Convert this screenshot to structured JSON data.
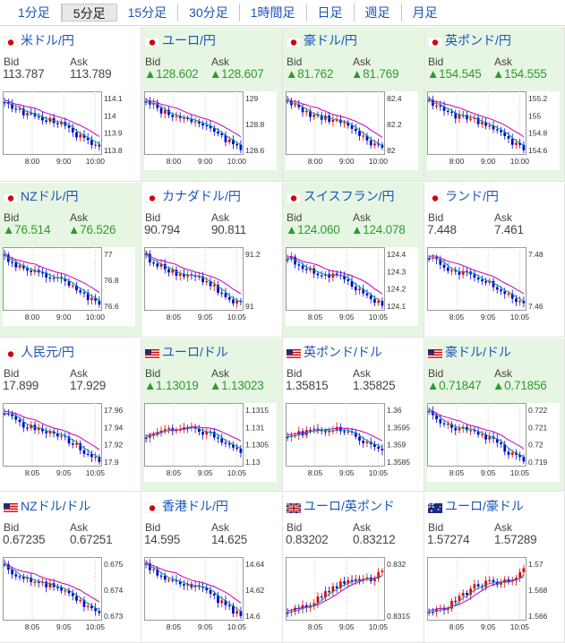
{
  "tabs": [
    "1分足",
    "5分足",
    "15分足",
    "30分足",
    "1時間足",
    "日足",
    "週足",
    "月足"
  ],
  "active_tab": 1,
  "colors": {
    "up": "#2e9b2e",
    "link": "#1a55b8",
    "up_bg": "#e6f6e3",
    "candle_up": "#e60000",
    "candle_down": "#0000cc",
    "ma_long": "#c000c0",
    "ma_short": "#009999"
  },
  "labels": {
    "bid": "Bid",
    "ask": "Ask"
  },
  "pairs": [
    {
      "name": "米ドル/円",
      "flag": "jp",
      "dir": "flat",
      "bid": "113.787",
      "ask": "113.789",
      "yticks": [
        "114.1",
        "114",
        "113.9",
        "113.8"
      ],
      "xticks": [
        "8:00",
        "9:00",
        "10:00"
      ],
      "trend": "down"
    },
    {
      "name": "ユーロ/円",
      "flag": "jp",
      "dir": "up",
      "bid": "▲128.602",
      "ask": "▲128.607",
      "yticks": [
        "129",
        "128.8",
        "128.6"
      ],
      "xticks": [
        "8:00",
        "9:00",
        "10:00"
      ],
      "trend": "down"
    },
    {
      "name": "豪ドル/円",
      "flag": "jp",
      "dir": "up",
      "bid": "▲81.762",
      "ask": "▲81.769",
      "yticks": [
        "82.4",
        "82.2",
        "82"
      ],
      "xticks": [
        "8:00",
        "9:00",
        "10:00"
      ],
      "trend": "down"
    },
    {
      "name": "英ポンド/円",
      "flag": "jp",
      "dir": "up",
      "bid": "▲154.545",
      "ask": "▲154.555",
      "yticks": [
        "155.2",
        "155",
        "154.8",
        "154.6"
      ],
      "xticks": [
        "8:00",
        "9:00",
        "10:00"
      ],
      "trend": "down"
    },
    {
      "name": "NZドル/円",
      "flag": "jp",
      "dir": "up",
      "bid": "▲76.514",
      "ask": "▲76.526",
      "yticks": [
        "77",
        "76.8",
        "76.6"
      ],
      "xticks": [
        "8:00",
        "9:00",
        "10:00"
      ],
      "trend": "down"
    },
    {
      "name": "カナダドル/円",
      "flag": "jp",
      "dir": "flat",
      "bid": "90.794",
      "ask": "90.811",
      "yticks": [
        "91.2",
        "91"
      ],
      "xticks": [
        "8:05",
        "9:05",
        "10:05"
      ],
      "trend": "down"
    },
    {
      "name": "スイスフラン/円",
      "flag": "jp",
      "dir": "up",
      "bid": "▲124.060",
      "ask": "▲124.078",
      "yticks": [
        "124.4",
        "124.3",
        "124.2",
        "124.1"
      ],
      "xticks": [
        "8:05",
        "9:05",
        "10:05"
      ],
      "trend": "down"
    },
    {
      "name": "ランド/円",
      "flag": "jp",
      "dir": "flat",
      "bid": "7.448",
      "ask": "7.461",
      "yticks": [
        "7.48",
        "7.46"
      ],
      "xticks": [
        "8:05",
        "9:05",
        "10:05"
      ],
      "trend": "down"
    },
    {
      "name": "人民元/円",
      "flag": "jp",
      "dir": "flat",
      "bid": "17.899",
      "ask": "17.929",
      "yticks": [
        "17.96",
        "17.94",
        "17.92",
        "17.9"
      ],
      "xticks": [
        "8:05",
        "9:05",
        "10:05"
      ],
      "trend": "down"
    },
    {
      "name": "ユーロ/ドル",
      "flag": "us",
      "dir": "up",
      "bid": "▲1.13019",
      "ask": "▲1.13023",
      "yticks": [
        "1.1315",
        "1.131",
        "1.1305",
        "1.13"
      ],
      "xticks": [
        "8:05",
        "9:05",
        "10:05"
      ],
      "trend": "hump"
    },
    {
      "name": "英ポンド/ドル",
      "flag": "us",
      "dir": "flat",
      "bid": "1.35815",
      "ask": "1.35825",
      "yticks": [
        "1.36",
        "1.3595",
        "1.359",
        "1.3585"
      ],
      "xticks": [
        "8:05",
        "9:05",
        "10:05"
      ],
      "trend": "hump"
    },
    {
      "name": "豪ドル/ドル",
      "flag": "us",
      "dir": "up",
      "bid": "▲0.71847",
      "ask": "▲0.71856",
      "yticks": [
        "0.722",
        "0.721",
        "0.72",
        "0.719"
      ],
      "xticks": [
        "8:05",
        "9:05",
        "10:05"
      ],
      "trend": "down"
    },
    {
      "name": "NZドル/ドル",
      "flag": "us",
      "dir": "flat",
      "bid": "0.67235",
      "ask": "0.67251",
      "yticks": [
        "0.675",
        "0.674",
        "0.673"
      ],
      "xticks": [
        "8:05",
        "9:05",
        "10:05"
      ],
      "trend": "down"
    },
    {
      "name": "香港ドル/円",
      "flag": "jp",
      "dir": "flat",
      "bid": "14.595",
      "ask": "14.625",
      "yticks": [
        "14.64",
        "14.62",
        "14.6"
      ],
      "xticks": [
        "8:05",
        "9:05",
        "10:05"
      ],
      "trend": "down"
    },
    {
      "name": "ユーロ/英ポンド",
      "flag": "gb",
      "dir": "flat",
      "bid": "0.83202",
      "ask": "0.83212",
      "yticks": [
        "0.832",
        "0.8315"
      ],
      "xticks": [
        "8:05",
        "9:05",
        "10:05"
      ],
      "trend": "up"
    },
    {
      "name": "ユーロ/豪ドル",
      "flag": "au",
      "dir": "flat",
      "bid": "1.57274",
      "ask": "1.57289",
      "yticks": [
        "1.57",
        "1.568",
        "1.566"
      ],
      "xticks": [
        "8:05",
        "9:05",
        "10:05"
      ],
      "trend": "up"
    }
  ]
}
